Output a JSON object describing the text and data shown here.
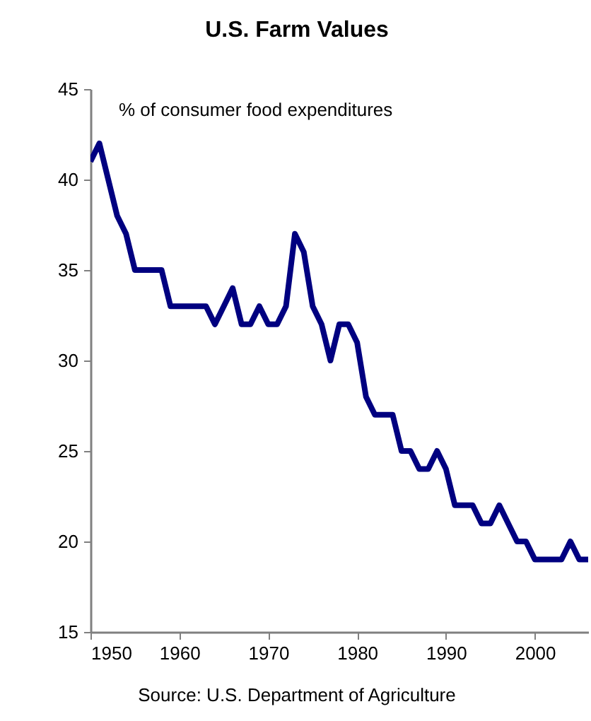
{
  "chart_data": {
    "type": "line",
    "title": "U.S. Farm Values",
    "annotations": [
      "% of consumer food expenditures",
      "Source: U.S. Department of Agriculture"
    ],
    "x": [
      1950,
      1951,
      1952,
      1953,
      1954,
      1955,
      1956,
      1957,
      1958,
      1959,
      1960,
      1961,
      1962,
      1963,
      1964,
      1965,
      1966,
      1967,
      1968,
      1969,
      1970,
      1971,
      1972,
      1973,
      1974,
      1975,
      1976,
      1977,
      1978,
      1979,
      1980,
      1981,
      1982,
      1983,
      1984,
      1985,
      1986,
      1987,
      1988,
      1989,
      1990,
      1991,
      1992,
      1993,
      1994,
      1995,
      1996,
      1997,
      1998,
      1999,
      2000,
      2001,
      2002,
      2003,
      2004,
      2005,
      2006
    ],
    "series": [
      {
        "color": "#000080",
        "values": [
          41,
          42,
          40,
          38,
          37,
          35,
          35,
          35,
          35,
          33,
          33,
          33,
          33,
          33,
          32,
          33,
          34,
          32,
          32,
          33,
          32,
          32,
          33,
          37,
          36,
          33,
          32,
          30,
          32,
          32,
          31,
          28,
          27,
          27,
          27,
          25,
          25,
          24,
          24,
          25,
          24,
          22,
          22,
          22,
          21,
          21,
          22,
          21,
          20,
          20,
          19,
          19,
          19,
          19,
          20,
          19,
          19
        ]
      }
    ],
    "xlim": [
      1950,
      2006
    ],
    "xticks": [
      1950,
      1960,
      1970,
      1980,
      1990,
      2000
    ],
    "ylim": [
      15,
      45
    ],
    "yticks": [
      15,
      20,
      25,
      30,
      35,
      40,
      45
    ],
    "grid": false,
    "legend": false,
    "marker": "none",
    "line_style": "solid"
  }
}
